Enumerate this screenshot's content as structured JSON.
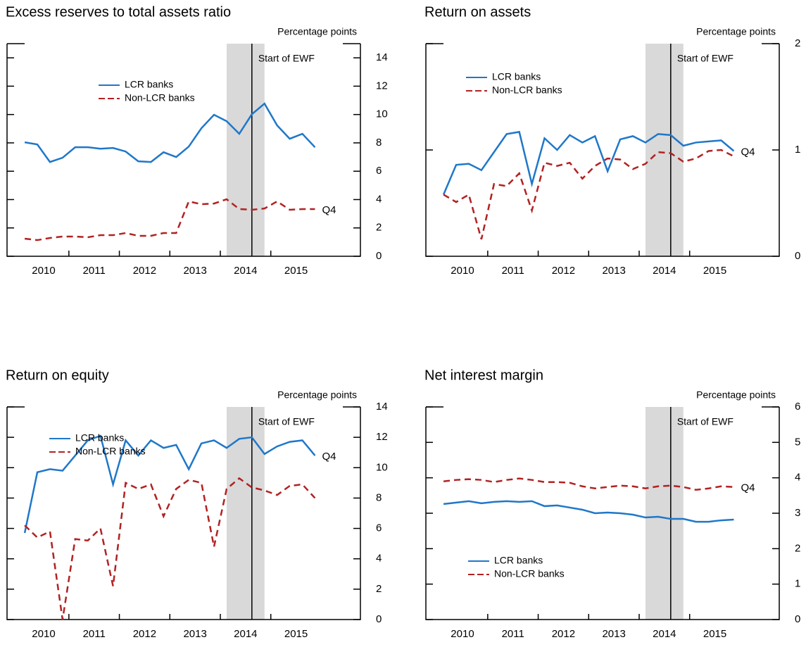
{
  "chart_data": [
    {
      "type": "line",
      "title": "Excess reserves to total assets ratio",
      "y_label": "Percentage points",
      "categories": [
        null,
        "2010",
        null,
        null,
        null,
        "2011",
        null,
        null,
        null,
        "2012",
        null,
        null,
        null,
        "2013",
        null,
        null,
        null,
        "2014",
        null,
        null,
        null,
        "2015",
        null,
        null
      ],
      "series": [
        {
          "name": "LCR banks",
          "color": "#1f77c9",
          "dash": false,
          "values": [
            8.04,
            7.89,
            6.65,
            6.95,
            7.69,
            7.69,
            7.59,
            7.64,
            7.39,
            6.7,
            6.65,
            7.34,
            7.0,
            7.74,
            9.03,
            9.98,
            9.53,
            8.64,
            10.02,
            10.77,
            9.23,
            8.29,
            8.64,
            7.69
          ]
        },
        {
          "name": "Non-LCR banks",
          "color": "#b22222",
          "dash": true,
          "values": [
            1.24,
            1.14,
            1.29,
            1.39,
            1.39,
            1.34,
            1.49,
            1.49,
            1.64,
            1.44,
            1.44,
            1.64,
            1.64,
            3.87,
            3.67,
            3.72,
            4.02,
            3.33,
            3.28,
            3.37,
            3.87,
            3.28,
            3.33,
            3.33
          ]
        }
      ],
      "ylim": [
        0,
        15
      ],
      "yticks": [
        0,
        2,
        4,
        6,
        8,
        10,
        12,
        14
      ],
      "legend": "upper center",
      "shaded": [
        16,
        19
      ],
      "event_index": 18,
      "event_label": "Start of EWF",
      "end_label": "Q4",
      "end_label_series": 1
    },
    {
      "type": "line",
      "title": "Return on assets",
      "y_label": "Percentage points",
      "categories": [
        null,
        "2010",
        null,
        null,
        null,
        "2011",
        null,
        null,
        null,
        "2012",
        null,
        null,
        null,
        "2013",
        null,
        null,
        null,
        "2014",
        null,
        null,
        null,
        "2015",
        null,
        null
      ],
      "series": [
        {
          "name": "LCR banks",
          "color": "#1f77c9",
          "dash": false,
          "values": [
            0.58,
            0.86,
            0.87,
            0.81,
            0.98,
            1.15,
            1.17,
            0.68,
            1.11,
            1.0,
            1.14,
            1.07,
            1.13,
            0.8,
            1.1,
            1.13,
            1.07,
            1.15,
            1.14,
            1.04,
            1.07,
            1.08,
            1.09,
            0.99
          ]
        },
        {
          "name": "Non-LCR banks",
          "color": "#b22222",
          "dash": true,
          "values": [
            0.58,
            0.51,
            0.58,
            0.16,
            0.68,
            0.66,
            0.78,
            0.43,
            0.88,
            0.85,
            0.88,
            0.73,
            0.85,
            0.92,
            0.91,
            0.82,
            0.87,
            0.98,
            0.97,
            0.89,
            0.92,
            0.99,
            1.0,
            0.94
          ]
        }
      ],
      "ylim": [
        0,
        2
      ],
      "yticks": [
        0,
        1,
        2
      ],
      "legend": "upper left",
      "shaded": [
        16,
        19
      ],
      "event_index": 18,
      "event_label": "Start of EWF",
      "end_label": "Q4",
      "end_label_series": 0
    },
    {
      "type": "line",
      "title": "Return on equity",
      "y_label": "Percentage points",
      "categories": [
        null,
        "2010",
        null,
        null,
        null,
        "2011",
        null,
        null,
        null,
        "2012",
        null,
        null,
        null,
        "2013",
        null,
        null,
        null,
        "2014",
        null,
        null,
        null,
        "2015",
        null,
        null
      ],
      "series": [
        {
          "name": "LCR banks",
          "color": "#1f77c9",
          "dash": false,
          "values": [
            5.7,
            9.7,
            9.9,
            9.8,
            10.8,
            11.8,
            12.1,
            8.9,
            11.8,
            10.8,
            11.8,
            11.3,
            11.5,
            9.9,
            11.6,
            11.8,
            11.3,
            11.9,
            12.0,
            10.9,
            11.4,
            11.7,
            11.8,
            10.8
          ]
        },
        {
          "name": "Non-LCR banks",
          "color": "#b22222",
          "dash": true,
          "values": [
            6.2,
            5.4,
            5.8,
            0,
            5.3,
            5.2,
            6.0,
            2.2,
            9.0,
            8.6,
            8.9,
            6.8,
            8.6,
            9.2,
            9.0,
            4.8,
            8.6,
            9.3,
            8.7,
            8.5,
            8.2,
            8.8,
            8.9,
            8.0
          ]
        }
      ],
      "ylim": [
        0,
        14
      ],
      "yticks": [
        0,
        2,
        4,
        6,
        8,
        10,
        12,
        14
      ],
      "legend": "upper left",
      "shaded": [
        16,
        19
      ],
      "event_index": 18,
      "event_label": "Start of EWF",
      "end_label": "Q4",
      "end_label_series": 0
    },
    {
      "type": "line",
      "title": "Net interest margin",
      "y_label": "Percentage points",
      "categories": [
        null,
        "2010",
        null,
        null,
        null,
        "2011",
        null,
        null,
        null,
        "2012",
        null,
        null,
        null,
        "2013",
        null,
        null,
        null,
        "2014",
        null,
        null,
        null,
        "2015",
        null,
        null
      ],
      "series": [
        {
          "name": "LCR banks",
          "color": "#1f77c9",
          "dash": false,
          "values": [
            3.26,
            3.3,
            3.34,
            3.28,
            3.32,
            3.34,
            3.32,
            3.34,
            3.2,
            3.22,
            3.16,
            3.1,
            3.0,
            3.02,
            3.0,
            2.96,
            2.88,
            2.9,
            2.84,
            2.84,
            2.76,
            2.76,
            2.8,
            2.82
          ]
        },
        {
          "name": "Non-LCR banks",
          "color": "#b22222",
          "dash": true,
          "values": [
            3.9,
            3.94,
            3.96,
            3.94,
            3.88,
            3.94,
            3.98,
            3.94,
            3.88,
            3.88,
            3.86,
            3.76,
            3.7,
            3.74,
            3.78,
            3.76,
            3.7,
            3.76,
            3.78,
            3.74,
            3.66,
            3.7,
            3.76,
            3.74
          ]
        }
      ],
      "ylim": [
        0,
        6
      ],
      "yticks": [
        0,
        1,
        2,
        3,
        4,
        5,
        6
      ],
      "legend": "lower left",
      "shaded": [
        16,
        19
      ],
      "event_index": 18,
      "event_label": "Start of EWF",
      "end_label": "Q4",
      "end_label_series": 1
    }
  ]
}
